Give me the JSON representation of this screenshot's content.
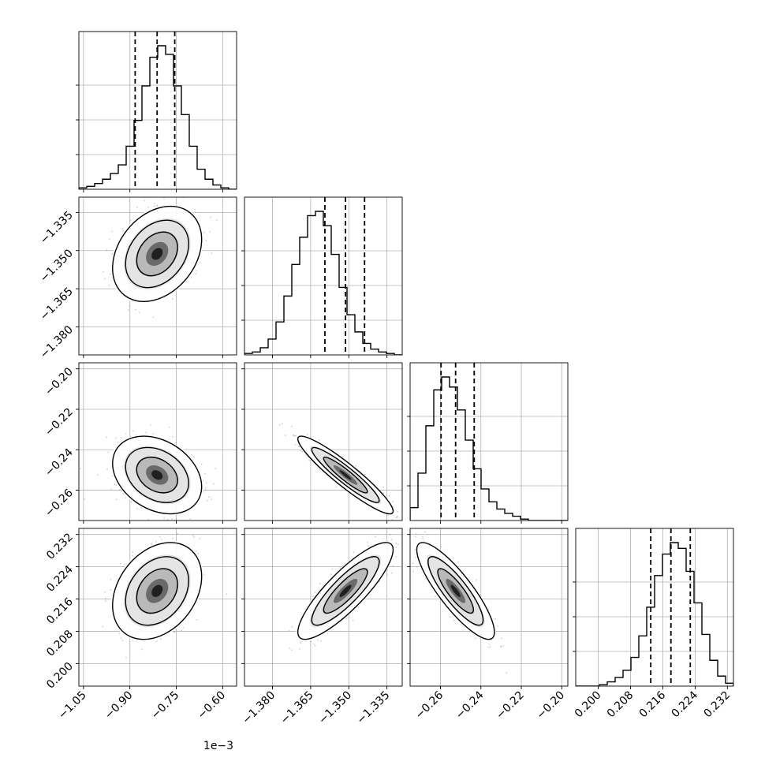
{
  "chart_data": {
    "type": "corner",
    "title": "",
    "parameters": [
      {
        "ticks": [
          -1.05,
          -0.9,
          -0.75,
          -0.6
        ],
        "tick_labels": [
          "−1.05",
          "−0.90",
          "−0.75",
          "−0.60"
        ],
        "range": [
          -1.065,
          -0.555
        ],
        "offset_label": "1e−3",
        "quantiles": [
          -0.883,
          -0.812,
          -0.755
        ],
        "center": -0.812,
        "sigma": 0.06
      },
      {
        "ticks": [
          -1.38,
          -1.365,
          -1.35,
          -1.335
        ],
        "tick_labels": [
          "−1.380",
          "−1.365",
          "−1.350",
          "−1.335"
        ],
        "range": [
          -1.391,
          -1.329
        ],
        "quantiles": [
          -1.3594,
          -1.3513,
          -1.3438
        ],
        "center": -1.3513,
        "sigma": 0.0078
      },
      {
        "ticks": [
          -0.26,
          -0.24,
          -0.22,
          -0.2
        ],
        "tick_labels": [
          "−0.26",
          "−0.24",
          "−0.22",
          "−0.20"
        ],
        "range": [
          -0.275,
          -0.197
        ],
        "quantiles": [
          -0.2597,
          -0.2525,
          -0.2433
        ],
        "center": -0.2525,
        "sigma": 0.008
      },
      {
        "ticks": [
          0.2,
          0.208,
          0.216,
          0.224,
          0.232
        ],
        "tick_labels": [
          "0.200",
          "0.208",
          "0.216",
          "0.224",
          "0.232"
        ],
        "range": [
          0.1944,
          0.2335
        ],
        "quantiles": [
          0.213,
          0.218,
          0.2228
        ],
        "center": 0.218,
        "sigma": 0.005
      }
    ],
    "histograms": [
      [
        1,
        2,
        4,
        7,
        11,
        17,
        30,
        48,
        72,
        92,
        100,
        94,
        72,
        52,
        30,
        14,
        7,
        3,
        1,
        0
      ],
      [
        1,
        2,
        5,
        11,
        23,
        41,
        63,
        82,
        97,
        100,
        90,
        70,
        47,
        28,
        16,
        8,
        4,
        2,
        1,
        0
      ],
      [
        9,
        33,
        66,
        91,
        100,
        93,
        77,
        56,
        36,
        22,
        13,
        8,
        5,
        3,
        1,
        0,
        0,
        0,
        0,
        0
      ],
      [
        0,
        0,
        0,
        1,
        3,
        6,
        11,
        20,
        35,
        55,
        77,
        92,
        100,
        96,
        80,
        58,
        36,
        18,
        7,
        2
      ]
    ],
    "correlations": {
      "1-0": 0.3,
      "2-0": -0.3,
      "2-1": -0.93,
      "3-0": 0.3,
      "3-1": 0.85,
      "3-2": -0.85
    },
    "grid": true
  }
}
